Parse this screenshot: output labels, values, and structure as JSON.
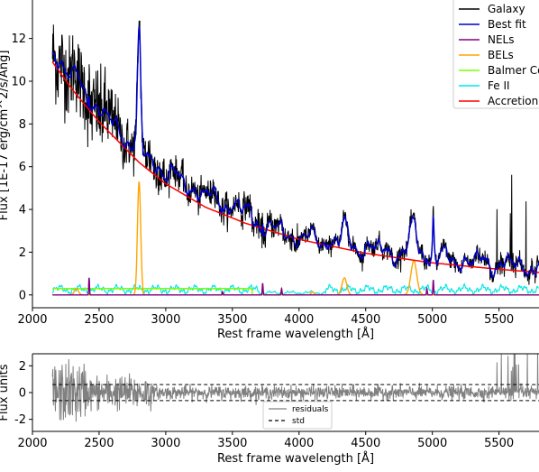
{
  "chart_data": [
    {
      "type": "line",
      "xlabel": "Rest frame wavelength [Å]",
      "ylabel": "Flux [1E-17 erg/cm^2/s/Ang]",
      "xlim": [
        2000,
        5800
      ],
      "ylim": [
        -0.6,
        13.8
      ],
      "xticks": [
        2000,
        2500,
        3000,
        3500,
        4000,
        4500,
        5000,
        5500
      ],
      "yticks": [
        0,
        2,
        4,
        6,
        8,
        10,
        12
      ],
      "legend_position": "top-right",
      "series": [
        {
          "name": "Galaxy",
          "color": "#000000"
        },
        {
          "name": "Best fit",
          "color": "#0000cc"
        },
        {
          "name": "NELs",
          "color": "#800080"
        },
        {
          "name": "BELs",
          "color": "#ffa500"
        },
        {
          "name": "Balmer Co",
          "color": "#7fff00"
        },
        {
          "name": "Fe II",
          "color": "#00e5e5"
        },
        {
          "name": "Accretion",
          "color": "#ff0000"
        }
      ],
      "accretion_points": {
        "x": [
          2150,
          2300,
          2500,
          2800,
          3000,
          3300,
          3600,
          4000,
          4500,
          5000,
          5500,
          5800
        ],
        "y": [
          10.9,
          9.6,
          8.1,
          6.2,
          5.2,
          4.1,
          3.35,
          2.6,
          1.95,
          1.5,
          1.2,
          1.05
        ]
      },
      "bel_peaks": [
        {
          "x": 2330,
          "y": 0.3
        },
        {
          "x": 2800,
          "y": 5.3
        },
        {
          "x": 4102,
          "y": 0.15
        },
        {
          "x": 4340,
          "y": 0.8
        },
        {
          "x": 4861,
          "y": 1.6
        }
      ],
      "nel_peaks": [
        {
          "x": 2425,
          "y": 0.8
        },
        {
          "x": 3426,
          "y": 0.15
        },
        {
          "x": 3727,
          "y": 0.55
        },
        {
          "x": 3869,
          "y": 0.3
        },
        {
          "x": 4959,
          "y": 0.3
        },
        {
          "x": 5007,
          "y": 0.7
        }
      ],
      "balmer_continuum": {
        "x_start": 2150,
        "x_end": 3646,
        "level": 0.3
      },
      "feii_level": 0.25,
      "bestfit_peaks": [
        {
          "x": 2800,
          "y": 10.9
        },
        {
          "x": 4340,
          "y": 2.6
        },
        {
          "x": 4861,
          "y": 3.2
        },
        {
          "x": 5007,
          "y": 3.0
        }
      ]
    },
    {
      "type": "line",
      "xlabel": "Rest frame wavelength [Å]",
      "ylabel": "Flux units",
      "xlim": [
        2000,
        5800
      ],
      "ylim": [
        -2.9,
        2.9
      ],
      "xticks": [
        2000,
        2500,
        3000,
        3500,
        4000,
        4500,
        5000,
        5500
      ],
      "yticks": [
        -2,
        0,
        2
      ],
      "legend_position": "bottom-center",
      "std_level": 0.6,
      "series": [
        {
          "name": "residuals",
          "color": "#808080"
        },
        {
          "name": "std",
          "color": "#000000"
        }
      ]
    }
  ]
}
